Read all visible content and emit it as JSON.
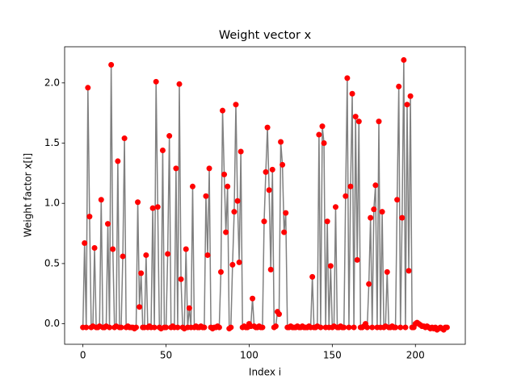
{
  "chart_data": {
    "type": "line",
    "title": "Weight vector x",
    "x_label": "Index i",
    "y_label": "Weight factor x[i]",
    "x": [
      0,
      1,
      2,
      3,
      4,
      5,
      6,
      7,
      8,
      9,
      10,
      11,
      12,
      13,
      14,
      15,
      16,
      17,
      18,
      19,
      20,
      21,
      22,
      23,
      24,
      25,
      26,
      27,
      28,
      29,
      30,
      31,
      32,
      33,
      34,
      35,
      36,
      37,
      38,
      39,
      40,
      41,
      42,
      43,
      44,
      45,
      46,
      47,
      48,
      49,
      50,
      51,
      52,
      53,
      54,
      55,
      56,
      57,
      58,
      59,
      60,
      61,
      62,
      63,
      64,
      65,
      66,
      67,
      68,
      69,
      70,
      71,
      72,
      73,
      74,
      75,
      76,
      77,
      78,
      79,
      80,
      81,
      82,
      83,
      84,
      85,
      86,
      87,
      88,
      89,
      90,
      91,
      92,
      93,
      94,
      95,
      96,
      97,
      98,
      99,
      100,
      101,
      102,
      103,
      104,
      105,
      106,
      107,
      108,
      109,
      110,
      111,
      112,
      113,
      114,
      115,
      116,
      117,
      118,
      119,
      120,
      121,
      122,
      123,
      124,
      125,
      126,
      127,
      128,
      129,
      130,
      131,
      132,
      133,
      134,
      135,
      136,
      137,
      138,
      139,
      140,
      141,
      142,
      143,
      144,
      145,
      146,
      147,
      148,
      149,
      150,
      151,
      152,
      153,
      154,
      155,
      156,
      157,
      158,
      159,
      160,
      161,
      162,
      163,
      164,
      165,
      166,
      167,
      168,
      169,
      170,
      171,
      172,
      173,
      174,
      175,
      176,
      177,
      178,
      179,
      180,
      181,
      182,
      183,
      184,
      185,
      186,
      187,
      188,
      189,
      190,
      191,
      192,
      193,
      194,
      195,
      196,
      197,
      198,
      199,
      200,
      201,
      202,
      203,
      204,
      205,
      206,
      207,
      208,
      209,
      210,
      211,
      212,
      213,
      214,
      215,
      216,
      217,
      218,
      219
    ],
    "series": [
      {
        "line_color": "#808080",
        "marker_color": "#ff0000",
        "values": [
          -0.03,
          0.67,
          -0.03,
          1.96,
          0.89,
          -0.03,
          -0.02,
          0.63,
          -0.03,
          -0.03,
          -0.02,
          1.03,
          -0.03,
          -0.03,
          -0.02,
          0.83,
          -0.03,
          2.15,
          0.62,
          -0.03,
          -0.02,
          1.35,
          -0.03,
          -0.03,
          0.56,
          1.54,
          -0.03,
          -0.02,
          -0.03,
          -0.03,
          -0.03,
          -0.04,
          -0.03,
          1.01,
          0.14,
          0.42,
          -0.03,
          -0.03,
          0.57,
          -0.03,
          -0.02,
          -0.03,
          0.96,
          -0.03,
          2.01,
          0.97,
          -0.03,
          -0.04,
          1.44,
          -0.03,
          -0.03,
          0.58,
          1.56,
          -0.03,
          -0.02,
          -0.03,
          1.29,
          -0.03,
          1.99,
          0.37,
          -0.03,
          -0.04,
          0.62,
          -0.03,
          0.13,
          -0.03,
          1.14,
          -0.03,
          -0.02,
          -0.03,
          -0.03,
          -0.02,
          -0.03,
          -0.03,
          1.06,
          0.57,
          1.29,
          -0.03,
          -0.04,
          -0.03,
          -0.03,
          -0.02,
          -0.03,
          0.43,
          1.77,
          1.24,
          0.76,
          1.14,
          -0.04,
          -0.03,
          0.49,
          0.93,
          1.82,
          1.02,
          0.51,
          1.43,
          -0.03,
          -0.02,
          -0.03,
          -0.03,
          0.0,
          -0.02,
          0.21,
          -0.02,
          -0.03,
          -0.03,
          -0.02,
          -0.03,
          -0.03,
          0.85,
          1.26,
          1.63,
          1.11,
          0.45,
          1.28,
          -0.03,
          -0.02,
          0.1,
          0.08,
          1.51,
          1.32,
          0.76,
          0.92,
          -0.03,
          -0.03,
          -0.02,
          -0.03,
          -0.03,
          -0.03,
          -0.02,
          -0.03,
          -0.03,
          -0.02,
          -0.03,
          -0.03,
          -0.03,
          -0.02,
          -0.03,
          0.39,
          -0.03,
          -0.03,
          -0.02,
          1.57,
          -0.03,
          1.64,
          1.5,
          -0.03,
          0.85,
          -0.03,
          0.48,
          -0.03,
          -0.02,
          0.97,
          -0.03,
          -0.03,
          -0.02,
          -0.03,
          -0.03,
          1.06,
          2.04,
          -0.03,
          1.14,
          1.91,
          -0.03,
          1.72,
          0.53,
          1.68,
          -0.03,
          -0.03,
          -0.02,
          0.0,
          -0.03,
          0.33,
          0.88,
          -0.03,
          0.95,
          1.15,
          -0.03,
          1.68,
          -0.03,
          0.93,
          -0.03,
          -0.02,
          0.43,
          -0.03,
          -0.03,
          -0.02,
          -0.03,
          -0.03,
          1.03,
          1.97,
          -0.03,
          0.88,
          2.19,
          -0.03,
          1.82,
          0.44,
          1.89,
          -0.03,
          -0.03,
          0.0,
          0.01,
          0.0,
          -0.01,
          -0.02,
          -0.02,
          -0.03,
          -0.02,
          -0.03,
          -0.04,
          -0.03,
          -0.04,
          -0.03,
          -0.05,
          -0.04,
          -0.03,
          -0.04,
          -0.05,
          -0.03,
          -0.03
        ]
      }
    ],
    "xlim": [
      -11,
      230
    ],
    "ylim": [
      -0.17,
      2.3
    ],
    "xticks": [
      0,
      50,
      100,
      150,
      200
    ],
    "yticks": [
      {
        "value": 0,
        "label": "0.0"
      },
      0.5,
      {
        "value": 1,
        "label": "1.0"
      },
      1.5,
      {
        "value": 2,
        "label": "2.0"
      }
    ]
  }
}
